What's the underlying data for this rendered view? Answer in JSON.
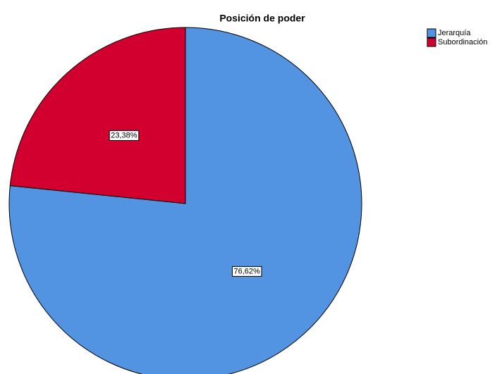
{
  "chart_data": {
    "type": "pie",
    "title": "Posición de poder",
    "categories": [
      "Jerarquía",
      "Subordinación"
    ],
    "values": [
      76.62,
      23.38
    ],
    "value_labels": [
      "76,62%",
      "23,38%"
    ],
    "colors": [
      "#5294e2",
      "#d2002e"
    ],
    "legend": "top-right"
  }
}
